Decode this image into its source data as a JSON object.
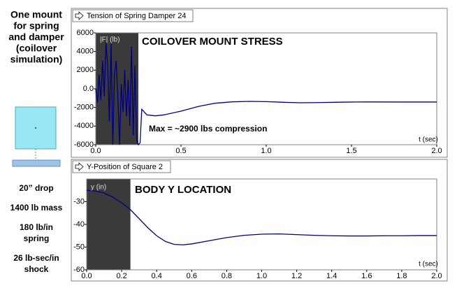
{
  "sidebar": {
    "heading": [
      "One mount",
      "for spring",
      "and damper",
      "(coilover",
      "simulation)"
    ],
    "specs": [
      [
        "20” drop"
      ],
      [
        "1400 lb mass"
      ],
      [
        "180 lb/in",
        "spring"
      ],
      [
        "26 lb-sec/in",
        "shock"
      ]
    ]
  },
  "chart_data": [
    {
      "type": "line",
      "title": "Tension of Spring Damper 24",
      "annotations": [
        "COILOVER MOUNT STRESS",
        "Max = ~2900 lbs compression"
      ],
      "xlabel": "t (sec)",
      "ylabel": "|F| (lb)",
      "color": "#000080",
      "highlight_x": [
        0,
        0.25
      ],
      "x": [
        0,
        0.01,
        0.02,
        0.03,
        0.04,
        0.05,
        0.06,
        0.07,
        0.08,
        0.09,
        0.1,
        0.11,
        0.12,
        0.13,
        0.14,
        0.15,
        0.16,
        0.17,
        0.18,
        0.19,
        0.2,
        0.21,
        0.22,
        0.23,
        0.24,
        0.25,
        0.26,
        0.27,
        0.3,
        0.35,
        0.4,
        0.5,
        0.6,
        0.7,
        0.8,
        0.9,
        1.0,
        1.1,
        1.2,
        1.3,
        1.4,
        1.5,
        1.6,
        1.8,
        2.0
      ],
      "values": [
        0,
        -1500,
        1500,
        -1200,
        3000,
        -800,
        5000,
        2500,
        -3500,
        4800,
        -6000,
        1500,
        3000,
        -1000,
        -6000,
        500,
        -2500,
        2000,
        -3000,
        1000,
        -4000,
        4500,
        -5000,
        2500,
        -5500,
        -6000,
        -5800,
        -2200,
        -2800,
        -2900,
        -2800,
        -2400,
        -1900,
        -1550,
        -1400,
        -1350,
        -1380,
        -1450,
        -1500,
        -1480,
        -1450,
        -1420,
        -1410,
        -1420,
        -1420
      ],
      "xlim": [
        0,
        2
      ],
      "ylim": [
        -6000,
        6000
      ],
      "xticks": [
        {
          "value": 0,
          "label": "0.0"
        },
        0.5,
        {
          "value": 1,
          "label": "1.0"
        },
        1.5,
        {
          "value": 2,
          "label": "2.0"
        }
      ],
      "yticks": [
        -6000,
        -4000,
        -2000,
        {
          "value": 0,
          "label": "0.0"
        },
        2000,
        4000,
        6000
      ]
    },
    {
      "type": "line",
      "title": "Y-Position of Square 2",
      "annotations": [
        "BODY Y LOCATION"
      ],
      "xlabel": "t (sec)",
      "ylabel": "y (in)",
      "color": "#000080",
      "highlight_x": [
        0,
        0.25
      ],
      "x": [
        0,
        0.05,
        0.1,
        0.15,
        0.2,
        0.25,
        0.3,
        0.35,
        0.4,
        0.45,
        0.5,
        0.55,
        0.6,
        0.7,
        0.8,
        0.9,
        1.0,
        1.1,
        1.2,
        1.3,
        1.4,
        1.5,
        1.6,
        1.7,
        1.8,
        1.9,
        2.0
      ],
      "values": [
        -25,
        -25.3,
        -26.2,
        -28,
        -30.5,
        -33.5,
        -37.5,
        -41.5,
        -45,
        -47.5,
        -48.8,
        -49,
        -48.6,
        -47.2,
        -45.8,
        -44.8,
        -44.3,
        -44.2,
        -44.5,
        -44.8,
        -45,
        -45.1,
        -45.1,
        -45,
        -45,
        -44.9,
        -44.9
      ],
      "xlim": [
        0,
        2
      ],
      "ylim": [
        -60,
        -20
      ],
      "xticks": [
        {
          "value": 0,
          "label": "0.0"
        },
        0.2,
        0.4,
        0.6,
        0.8,
        {
          "value": 1,
          "label": "1.0"
        },
        1.2,
        1.4,
        1.6,
        1.8,
        {
          "value": 2,
          "label": "2.0"
        }
      ],
      "yticks": [
        -60,
        -50,
        -40,
        -30
      ]
    }
  ]
}
